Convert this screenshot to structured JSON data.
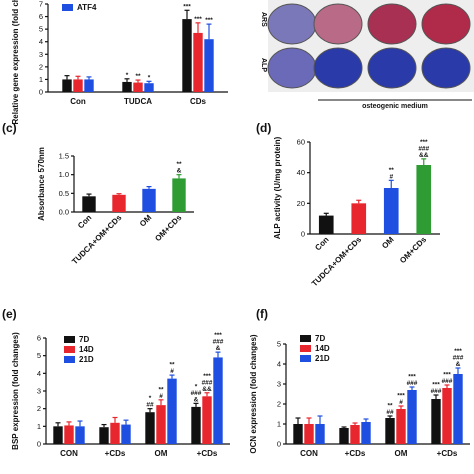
{
  "panel_labels": {
    "c": "(c)",
    "d": "(d)",
    "e": "(e)",
    "f": "(f)"
  },
  "colors": {
    "black": "#111111",
    "red": "#e8262d",
    "blue": "#1f4fe0",
    "green": "#2e9c32",
    "plate_purple": "#5f5fb0",
    "plate_red": "#b02a4a"
  },
  "plate_panel": {
    "row_labels": [
      "ARS",
      "ALP"
    ],
    "bracket_label": "osteogenic medium"
  },
  "chart_data": [
    {
      "id": "top-left",
      "type": "bar",
      "ylabel": "Relative gene expression (fold changes)",
      "ylim": [
        0,
        7
      ],
      "yticks": [
        0,
        1,
        2,
        3,
        4,
        5,
        6,
        7
      ],
      "categories": [
        "Con",
        "TUDCA",
        "CDs"
      ],
      "legend": [
        "ATF4"
      ],
      "series": [
        {
          "color": "#111111",
          "values": [
            1.0,
            0.8,
            5.8
          ],
          "errors": [
            0.3,
            0.25,
            0.7
          ]
        },
        {
          "color": "#e8262d",
          "values": [
            1.0,
            0.75,
            4.7
          ],
          "errors": [
            0.25,
            0.2,
            0.8
          ]
        },
        {
          "color": "#1f4fe0",
          "values": [
            1.0,
            0.7,
            4.2
          ],
          "errors": [
            0.2,
            0.15,
            1.2
          ]
        }
      ],
      "significance": [
        [
          null,
          "*",
          "***"
        ],
        [
          null,
          "**",
          "***"
        ],
        [
          null,
          "*",
          "***"
        ]
      ]
    },
    {
      "id": "c",
      "type": "bar",
      "ylabel": "Absorbance 570nm",
      "ylim": [
        0,
        1.5
      ],
      "yticks": [
        "0.0",
        "0.5",
        "1.0",
        "1.5"
      ],
      "categories": [
        "Con",
        "TUDCA+OM+CDs",
        "OM",
        "OM+CDs"
      ],
      "colors": [
        "#111111",
        "#e8262d",
        "#1f4fe0",
        "#2e9c32"
      ],
      "values": [
        0.42,
        0.46,
        0.62,
        0.9
      ],
      "errors": [
        0.06,
        0.03,
        0.06,
        0.1
      ],
      "significance": [
        null,
        null,
        null,
        "**\n&"
      ]
    },
    {
      "id": "d",
      "type": "bar",
      "ylabel": "ALP activity (U/mg protein)",
      "ylim": [
        0,
        60
      ],
      "yticks": [
        "0",
        "20",
        "40",
        "60"
      ],
      "categories": [
        "Con",
        "TUDCA+OM+CDs",
        "OM",
        "OM+CDs"
      ],
      "colors": [
        "#111111",
        "#e8262d",
        "#1f4fe0",
        "#2e9c32"
      ],
      "values": [
        12,
        20,
        30,
        45
      ],
      "errors": [
        1.5,
        2,
        5,
        4
      ],
      "significance": [
        null,
        null,
        "**\n#",
        "***\n###\n&&"
      ]
    },
    {
      "id": "e",
      "type": "bar",
      "ylabel": "BSP expression (fold changes)",
      "ylim": [
        0,
        6
      ],
      "yticks": [
        0,
        1,
        2,
        3,
        4,
        5,
        6
      ],
      "categories": [
        "CON",
        "+CDs",
        "OM",
        "+CDs"
      ],
      "legend": [
        "7D",
        "14D",
        "21D"
      ],
      "series": [
        {
          "name": "7D",
          "color": "#111111",
          "values": [
            1.0,
            0.95,
            1.8,
            2.1
          ],
          "errors": [
            0.2,
            0.15,
            0.2,
            0.2
          ]
        },
        {
          "name": "14D",
          "color": "#e8262d",
          "values": [
            1.05,
            1.2,
            2.2,
            2.7
          ],
          "errors": [
            0.2,
            0.3,
            0.3,
            0.2
          ]
        },
        {
          "name": "21D",
          "color": "#1f4fe0",
          "values": [
            1.0,
            1.1,
            3.7,
            4.9
          ],
          "errors": [
            0.3,
            0.25,
            0.2,
            0.3
          ]
        }
      ],
      "significance": [
        [
          null,
          null,
          "*\n##",
          "*\n###\n&"
        ],
        [
          null,
          null,
          "**\n#",
          "***\n###\n&&"
        ],
        [
          null,
          null,
          "**\n#",
          "***\n###\n&"
        ]
      ]
    },
    {
      "id": "f",
      "type": "bar",
      "ylabel": "OCN expression (fold changes)",
      "ylim": [
        0,
        5
      ],
      "yticks": [
        0,
        1,
        2,
        3,
        4,
        5
      ],
      "categories": [
        "CON",
        "+CDs",
        "OM",
        "+CDs"
      ],
      "legend": [
        "7D",
        "14D",
        "21D"
      ],
      "series": [
        {
          "name": "7D",
          "color": "#111111",
          "values": [
            1.0,
            0.8,
            1.3,
            2.25
          ],
          "errors": [
            0.3,
            0.05,
            0.1,
            0.2
          ]
        },
        {
          "name": "14D",
          "color": "#e8262d",
          "values": [
            1.0,
            0.95,
            1.75,
            2.8
          ],
          "errors": [
            0.3,
            0.1,
            0.15,
            0.15
          ]
        },
        {
          "name": "21D",
          "color": "#1f4fe0",
          "values": [
            1.0,
            1.1,
            2.7,
            3.5
          ],
          "errors": [
            0.4,
            0.15,
            0.15,
            0.3
          ]
        }
      ],
      "significance": [
        [
          null,
          null,
          "**\n##",
          "***\n###"
        ],
        [
          null,
          null,
          "***\n#",
          "***\n###"
        ],
        [
          null,
          null,
          "***\n###",
          "***\n###\n&"
        ]
      ]
    }
  ]
}
